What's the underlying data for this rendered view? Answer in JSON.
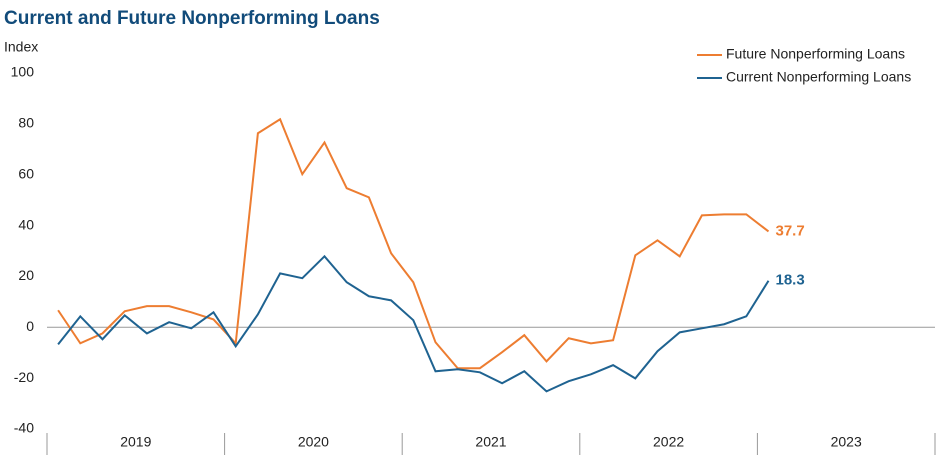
{
  "chart_data": {
    "type": "line",
    "title": "Current and Future Nonperforming Loans",
    "ylabel": "Index",
    "categories": [
      null,
      null,
      null,
      null,
      null,
      null,
      null,
      null,
      null,
      null,
      null,
      null,
      null,
      null,
      null,
      null,
      null,
      null,
      null,
      null,
      null,
      null,
      null,
      null,
      null,
      null,
      null,
      null,
      null,
      null,
      null,
      null,
      null
    ],
    "year_labels": [
      "2019",
      "2020",
      "2021",
      "2022",
      "2023"
    ],
    "ylim": [
      -40,
      100
    ],
    "yticks": [
      -40,
      -20,
      0,
      20,
      40,
      60,
      80,
      100
    ],
    "legend": "upper right",
    "series": [
      {
        "name": "Future Nonperforming Loans",
        "color": "#ed7d31",
        "values": [
          6.7,
          -6.3,
          -2.4,
          6.3,
          8.3,
          8.3,
          5.9,
          3.1,
          -6.3,
          76.3,
          81.8,
          60.2,
          72.7,
          54.7,
          51.1,
          29.1,
          17.7,
          -5.9,
          -16.1,
          -16.1,
          -9.8,
          -3.1,
          -13.4,
          -4.3,
          -6.3,
          -5.1,
          28.3,
          34.2,
          27.9,
          44.0,
          44.4,
          44.4,
          37.7
        ]
      },
      {
        "name": "Current Nonperforming Loans",
        "color": "#1f6391",
        "values": [
          -6.7,
          4.3,
          -4.7,
          4.7,
          -2.4,
          2.0,
          -0.4,
          5.9,
          -7.5,
          5.1,
          21.2,
          19.3,
          27.9,
          17.7,
          12.2,
          10.6,
          2.8,
          -17.3,
          -16.5,
          -17.7,
          -22.0,
          -17.3,
          -25.2,
          -21.2,
          -18.5,
          -14.9,
          -20.1,
          -9.4,
          -2.0,
          -0.4,
          1.2,
          4.3,
          18.3
        ]
      }
    ]
  }
}
